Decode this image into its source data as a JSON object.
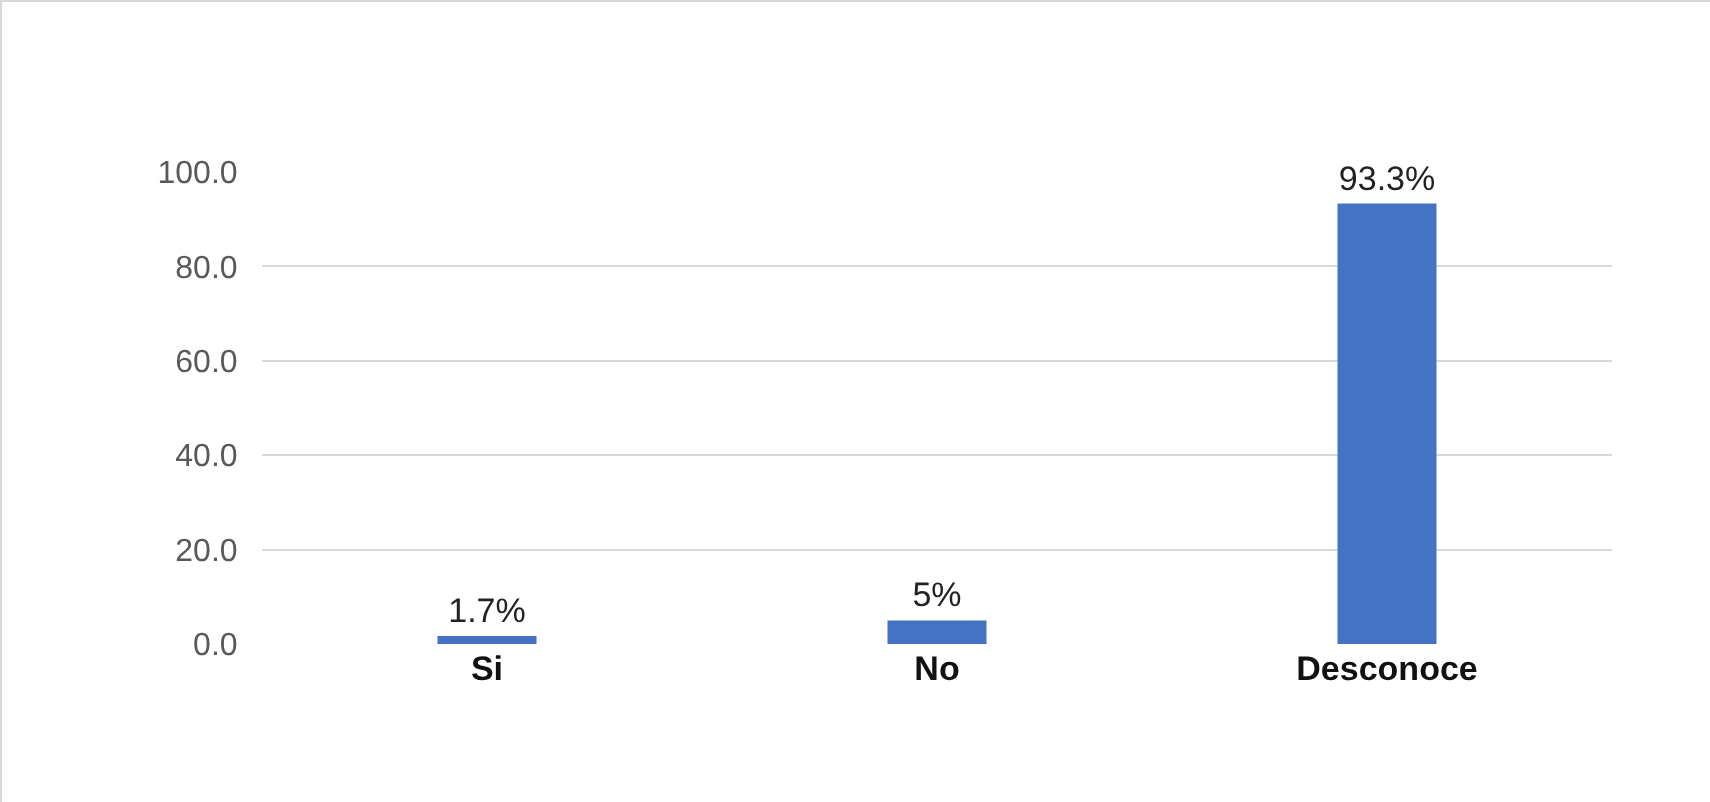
{
  "chart_data": {
    "type": "bar",
    "categories": [
      "Si",
      "No",
      "Desconoce"
    ],
    "values": [
      1.7,
      5,
      93.3
    ],
    "value_labels": [
      "1.7%",
      "5%",
      "93.3%"
    ],
    "color": "#4472c4",
    "ylim": [
      0,
      100
    ],
    "yticks": [
      {
        "value": 0,
        "label": "0.0"
      },
      {
        "value": 20,
        "label": "20.0"
      },
      {
        "value": 40,
        "label": "40.0"
      },
      {
        "value": 60,
        "label": "60.0"
      },
      {
        "value": 80,
        "label": "80.0"
      },
      {
        "value": 100,
        "label": "100.0"
      }
    ],
    "grid": "y"
  }
}
